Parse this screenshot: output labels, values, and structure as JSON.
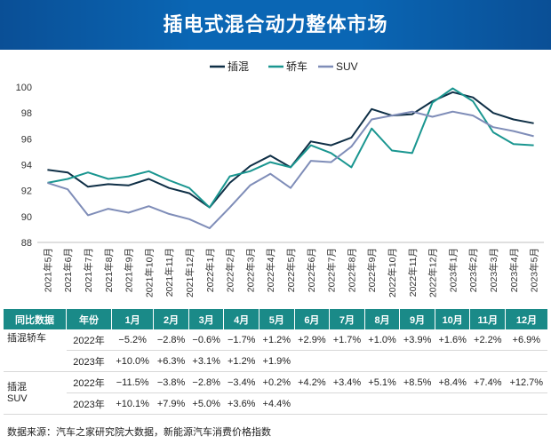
{
  "title": "插电式混合动力整体市场",
  "colors": {
    "phev": "#0f2f46",
    "sedan": "#1a9690",
    "suv": "#7f8db8",
    "header_bg": "#1a8a88"
  },
  "chart_data": {
    "type": "line",
    "title": "插电式混合动力整体市场",
    "categories": [
      "2021年5月",
      "2021年6月",
      "2021年7月",
      "2021年8月",
      "2021年9月",
      "2021年10月",
      "2021年11月",
      "2021年12月",
      "2022年1月",
      "2022年2月",
      "2022年3月",
      "2022年4月",
      "2022年5月",
      "2022年6月",
      "2022年7月",
      "2022年8月",
      "2022年9月",
      "2022年10月",
      "2022年11月",
      "2022年12月",
      "2023年1月",
      "2023年2月",
      "2023年3月",
      "2023年4月",
      "2023年5月"
    ],
    "series": [
      {
        "name": "插混",
        "values": [
          93.6,
          93.4,
          92.3,
          92.5,
          92.4,
          92.9,
          92.2,
          91.8,
          90.7,
          92.6,
          93.9,
          94.7,
          93.8,
          95.8,
          95.5,
          96.1,
          98.3,
          97.8,
          97.9,
          98.9,
          99.6,
          99.2,
          98.0,
          97.5,
          97.2
        ]
      },
      {
        "name": "轿车",
        "values": [
          92.6,
          92.9,
          93.4,
          92.9,
          93.1,
          93.5,
          92.8,
          92.2,
          90.7,
          93.1,
          93.5,
          94.2,
          93.8,
          95.5,
          94.9,
          93.8,
          96.8,
          95.1,
          94.9,
          98.8,
          99.9,
          98.9,
          96.5,
          95.6,
          95.5
        ]
      },
      {
        "name": "SUV",
        "values": [
          92.6,
          92.1,
          90.1,
          90.6,
          90.3,
          90.8,
          90.2,
          89.8,
          89.1,
          90.7,
          92.4,
          93.3,
          92.2,
          94.3,
          94.2,
          95.4,
          97.5,
          97.8,
          98.1,
          97.7,
          98.1,
          97.8,
          96.9,
          96.6,
          96.2
        ]
      }
    ],
    "ylim": [
      88,
      100
    ],
    "yticks": [
      88,
      90,
      92,
      94,
      96,
      98,
      100
    ],
    "legend": "top-center"
  },
  "table": {
    "header": [
      "同比数据",
      "年份",
      "1月",
      "2月",
      "3月",
      "4月",
      "5月",
      "6月",
      "7月",
      "8月",
      "9月",
      "10月",
      "11月",
      "12月"
    ],
    "groups": [
      {
        "name": "插混轿车",
        "rows": [
          {
            "year": "2022年",
            "values": [
              "−5.2%",
              "−2.8%",
              "−0.6%",
              "−1.7%",
              "+1.2%",
              "+2.9%",
              "+1.7%",
              "+1.0%",
              "+3.9%",
              "+1.6%",
              "+2.2%",
              "+6.9%"
            ]
          },
          {
            "year": "2023年",
            "values": [
              "+10.0%",
              "+6.3%",
              "+3.1%",
              "+1.2%",
              "+1.9%",
              "",
              "",
              "",
              "",
              "",
              "",
              ""
            ]
          }
        ]
      },
      {
        "name": "插混\nSUV",
        "rows": [
          {
            "year": "2022年",
            "values": [
              "−11.5%",
              "−3.8%",
              "−2.8%",
              "−3.4%",
              "+0.2%",
              "+4.2%",
              "+3.4%",
              "+5.1%",
              "+8.5%",
              "+8.4%",
              "+7.4%",
              "+12.7%"
            ]
          },
          {
            "year": "2023年",
            "values": [
              "+10.1%",
              "+7.9%",
              "+5.0%",
              "+3.6%",
              "+4.4%",
              "",
              "",
              "",
              "",
              "",
              "",
              ""
            ]
          }
        ]
      }
    ]
  },
  "source": "数据来源：汽车之家研究院大数据，新能源汽车消费价格指数"
}
